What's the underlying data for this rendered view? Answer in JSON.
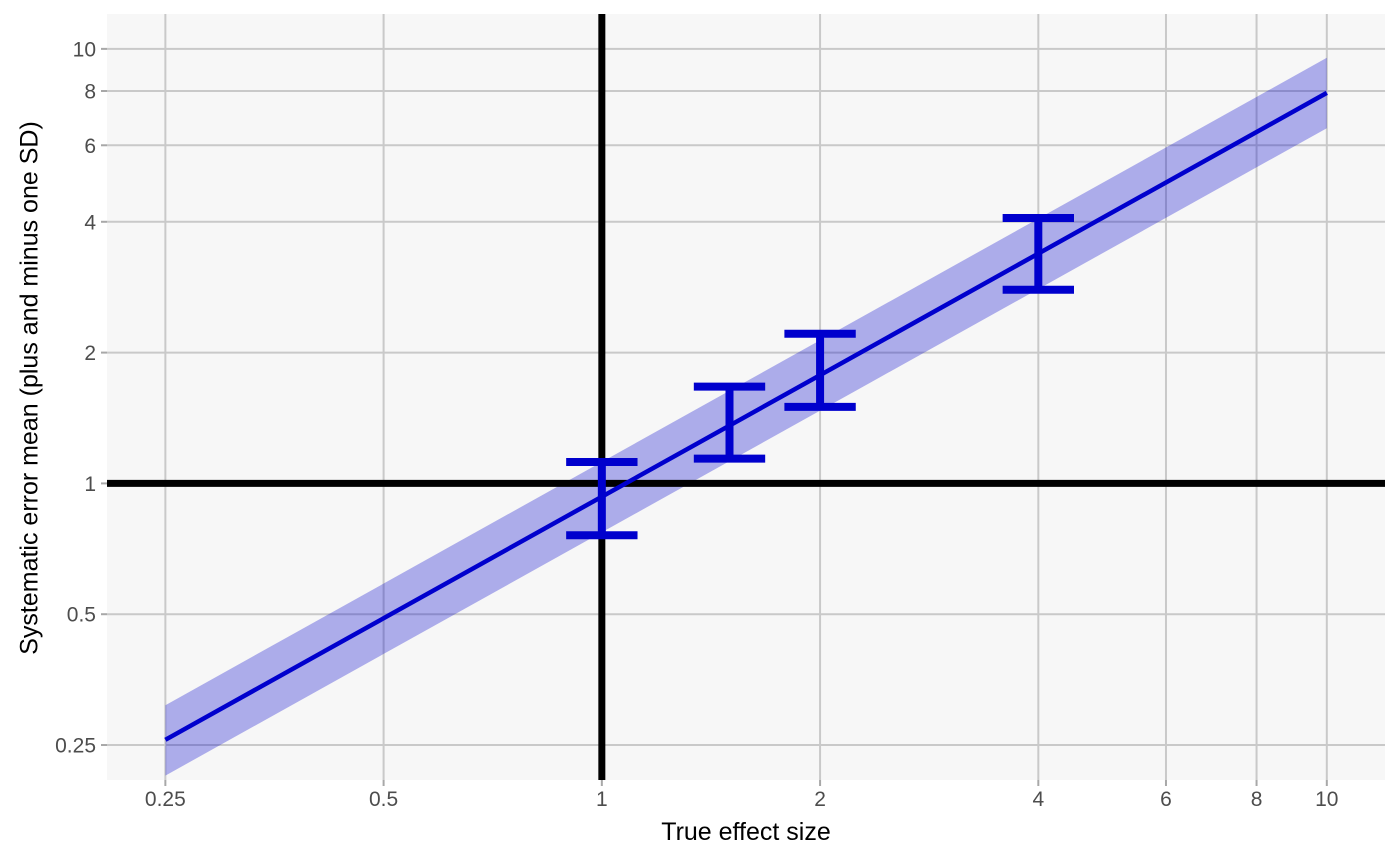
{
  "chart_data": {
    "type": "line",
    "title": "",
    "xlabel": "True effect size",
    "ylabel": "Systematic error mean (plus and minus one SD)",
    "x_scale": "log10",
    "y_scale": "log10",
    "x_domain": [
      0.2077,
      12.03
    ],
    "y_domain": [
      0.2077,
      12.03
    ],
    "grid": true,
    "legend": "none",
    "x_ticks": {
      "values": [
        0.25,
        0.5,
        1,
        2,
        4,
        6,
        8,
        10
      ],
      "labels": [
        "0.25",
        "0.5",
        "1",
        "2",
        "4",
        "6",
        "8",
        "10"
      ]
    },
    "y_ticks": {
      "values": [
        0.25,
        0.5,
        1,
        2,
        4,
        6,
        8,
        10
      ],
      "labels": [
        "0.25",
        "0.5",
        "1",
        "2",
        "4",
        "6",
        "8",
        "10"
      ]
    },
    "reference_lines": {
      "vertical_x": 1,
      "horizontal_y": 1
    },
    "trend_line": {
      "model": "y = 0.93 * x^0.93",
      "intercept": 0.93,
      "exponent": 0.93,
      "x_range": [
        0.25,
        10
      ],
      "endpoints": {
        "x": [
          0.25,
          10
        ],
        "y": [
          0.257,
          7.92
        ]
      }
    },
    "ribbon": {
      "x_range": [
        0.25,
        10
      ],
      "multiplicative_halfwidth": 1.205,
      "upper_at_ends": [
        0.31,
        9.54
      ],
      "lower_at_ends": [
        0.213,
        6.57
      ]
    },
    "error_bars": {
      "cap_halfwidth_ratio": 1.12,
      "points": [
        {
          "x": 1,
          "y_center": 0.92,
          "y_min": 0.76,
          "y_max": 1.12
        },
        {
          "x": 1.5,
          "y_center": 1.38,
          "y_min": 1.14,
          "y_max": 1.67
        },
        {
          "x": 2,
          "y_center": 1.82,
          "y_min": 1.5,
          "y_max": 2.21
        },
        {
          "x": 4,
          "y_center": 3.37,
          "y_min": 2.79,
          "y_max": 4.08
        }
      ]
    },
    "colors": {
      "line": "#0000CD",
      "ribbon": "#0000CD",
      "ribbon_alpha": 0.3,
      "error_bar": "#0000CD",
      "reference_line": "#000000",
      "panel_background": "#F7F7F7",
      "gridline": "#C9C9C9",
      "tick_mark": "#A8A8A8",
      "tick_label": "#4D4D4D",
      "axis_title": "#000000",
      "figure_background": "#FFFFFF"
    }
  }
}
